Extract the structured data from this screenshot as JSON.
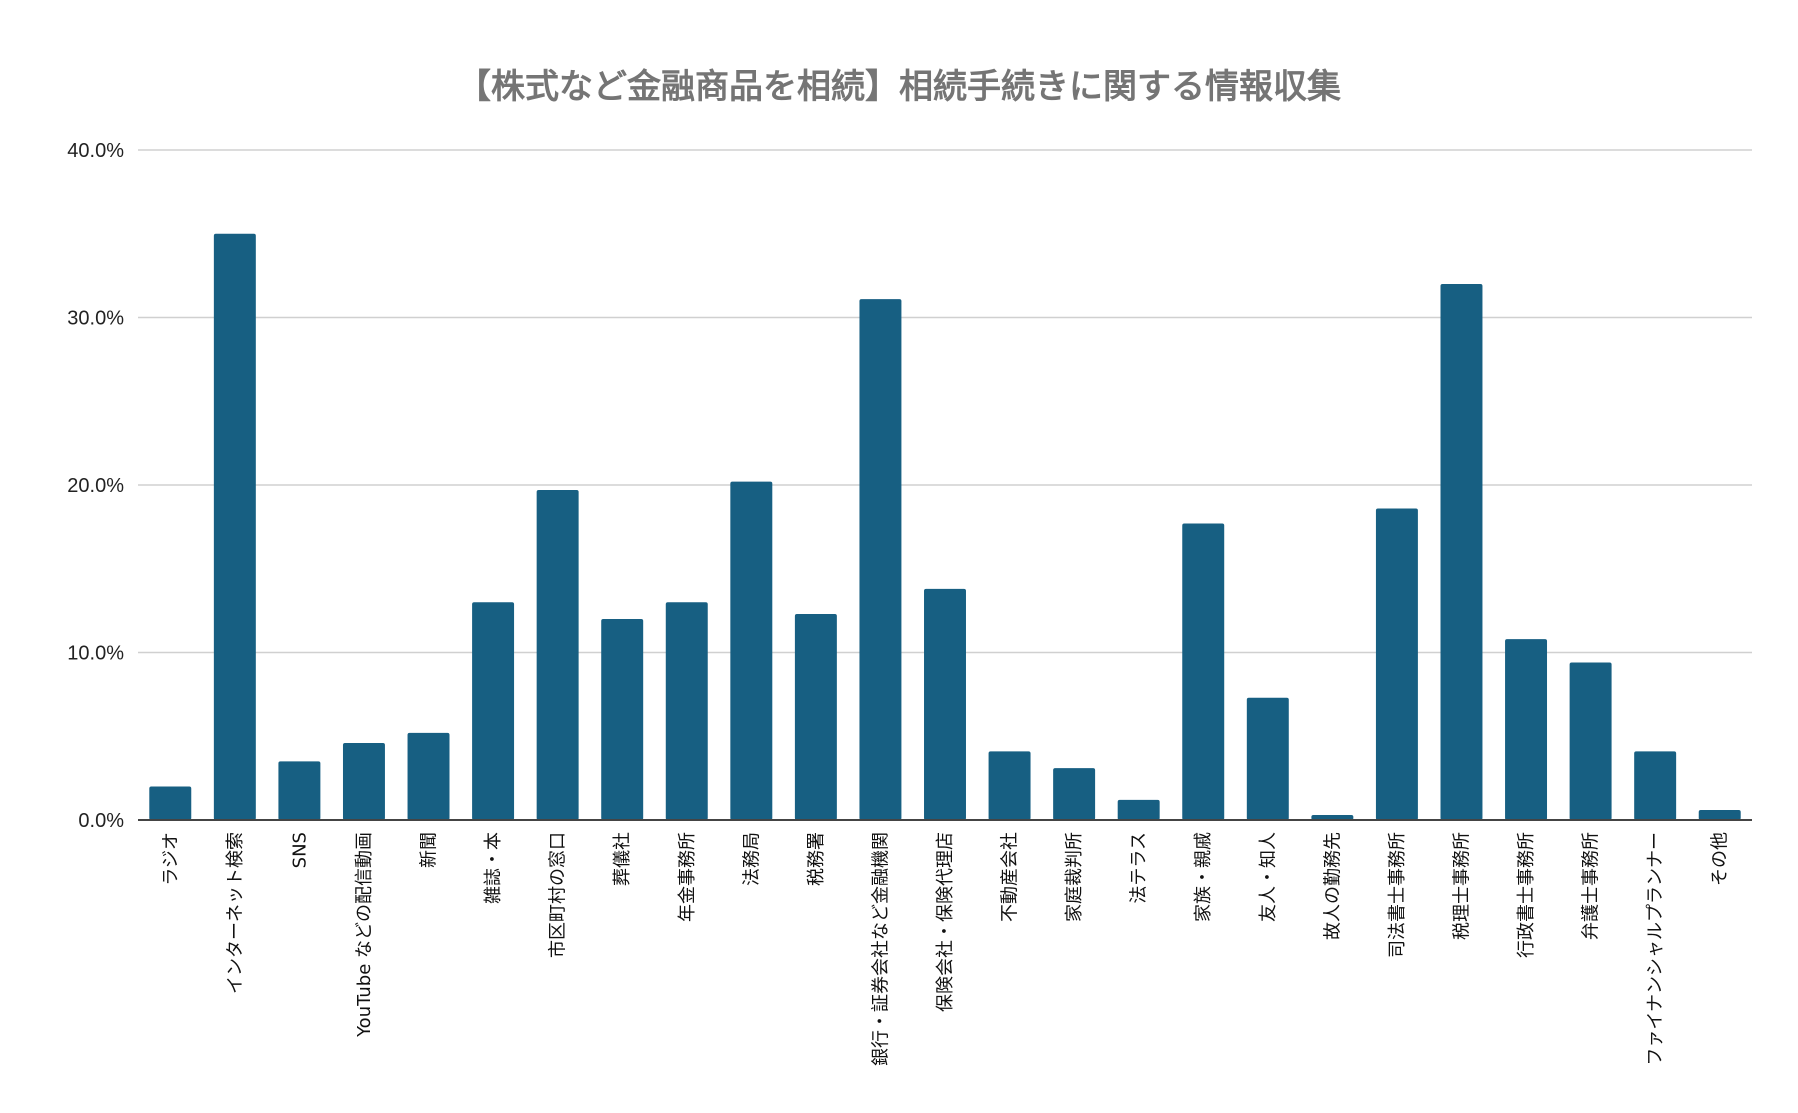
{
  "chart_data": {
    "type": "bar",
    "title": "【株式など金融商品を相続】相続手続きに関する情報収集",
    "xlabel": "",
    "ylabel": "",
    "ylim": [
      0,
      40
    ],
    "yticks": [
      "0.0%",
      "10.0%",
      "20.0%",
      "30.0%",
      "40.0%"
    ],
    "ytick_values": [
      0,
      10,
      20,
      30,
      40
    ],
    "grid": true,
    "legend": "none",
    "bar_color": "#175f82",
    "categories": [
      "ラジオ",
      "インターネット検索",
      "SNS",
      "YouTube などの配信動画",
      "新聞",
      "雑誌・本",
      "市区町村の窓口",
      "葬儀社",
      "年金事務所",
      "法務局",
      "税務署",
      "銀行・証券会社など金融機関",
      "保険会社・保険代理店",
      "不動産会社",
      "家庭裁判所",
      "法テラス",
      "家族・親戚",
      "友人・知人",
      "故人の勤務先",
      "司法書士事務所",
      "税理士事務所",
      "行政書士事務所",
      "弁護士事務所",
      "ファイナンシャルプランナー",
      "その他"
    ],
    "values": [
      2.0,
      35.0,
      3.5,
      4.6,
      5.2,
      13.0,
      19.7,
      12.0,
      13.0,
      20.2,
      12.3,
      31.1,
      13.8,
      4.1,
      3.1,
      1.2,
      17.7,
      7.3,
      0.3,
      18.6,
      32.0,
      10.8,
      9.4,
      4.1,
      0.6
    ]
  }
}
